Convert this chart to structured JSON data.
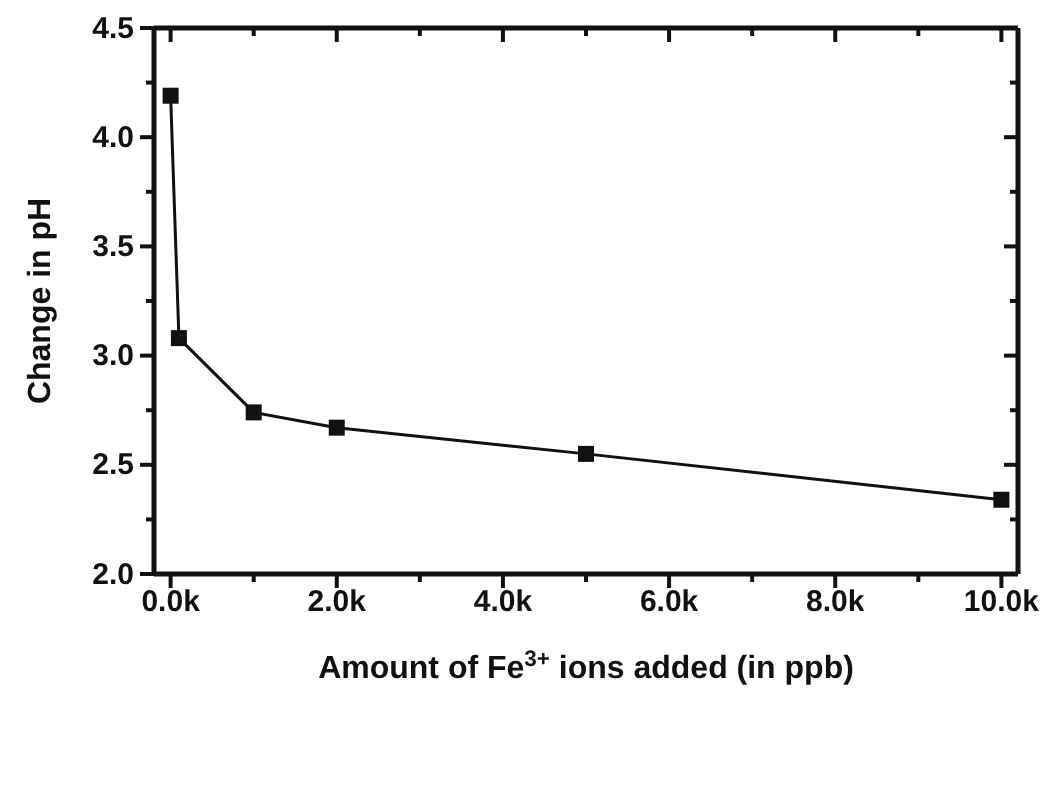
{
  "chart_data": {
    "type": "line",
    "xlabel": "Amount of Fe$^{3+}$ ions added (in ppb)",
    "ylabel": "Change in pH",
    "x": [
      0,
      100,
      1000,
      2000,
      5000,
      10000
    ],
    "series": [
      {
        "color": "#111111",
        "values": [
          4.19,
          3.08,
          2.74,
          2.67,
          2.55,
          2.34
        ]
      }
    ],
    "xlim": [
      -200,
      10200
    ],
    "ylim": [
      2.0,
      4.5
    ],
    "xticks": [
      {
        "value": 0,
        "label": "0.0k"
      },
      {
        "value": 1000,
        "label": null
      },
      {
        "value": 2000,
        "label": "2.0k"
      },
      {
        "value": 3000,
        "label": null
      },
      {
        "value": 4000,
        "label": "4.0k"
      },
      {
        "value": 5000,
        "label": null
      },
      {
        "value": 6000,
        "label": "6.0k"
      },
      {
        "value": 7000,
        "label": null
      },
      {
        "value": 8000,
        "label": "8.0k"
      },
      {
        "value": 9000,
        "label": null
      },
      {
        "value": 10000,
        "label": "10.0k"
      }
    ],
    "yticks": [
      {
        "value": 2.0,
        "label": "2.0"
      },
      {
        "value": 2.25,
        "label": null
      },
      {
        "value": 2.5,
        "label": "2.5"
      },
      {
        "value": 2.75,
        "label": null
      },
      {
        "value": 3.0,
        "label": "3.0"
      },
      {
        "value": 3.25,
        "label": null
      },
      {
        "value": 3.5,
        "label": "3.5"
      },
      {
        "value": 3.75,
        "label": null
      },
      {
        "value": 4.0,
        "label": "4.0"
      },
      {
        "value": 4.25,
        "label": null
      },
      {
        "value": 4.5,
        "label": "4.5"
      }
    ],
    "marker": "square",
    "line_style": "solid"
  }
}
